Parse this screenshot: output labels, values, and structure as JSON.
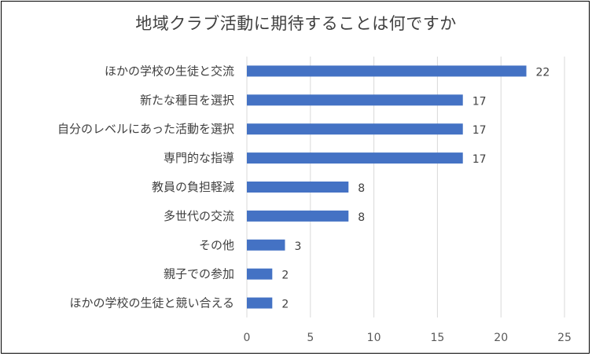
{
  "chart_data": {
    "type": "bar",
    "orientation": "horizontal",
    "title": "地域クラブ活動に期待することは何ですか",
    "categories": [
      "ほかの学校の生徒と交流",
      "新たな種目を選択",
      "自分のレベルにあった活動を選択",
      "専門的な指導",
      "教員の負担軽減",
      "多世代の交流",
      "その他",
      "親子での参加",
      "ほかの学校の生徒と競い合える"
    ],
    "values": [
      22,
      17,
      17,
      17,
      8,
      8,
      3,
      2,
      2
    ],
    "xlim": [
      0,
      25
    ],
    "xticks": [
      "0",
      "5",
      "10",
      "15",
      "20",
      "25"
    ],
    "grid": true,
    "legend": "none",
    "bar_color": "#4472C4",
    "grid_color": "#D9D9D9",
    "text_color": "#404040"
  }
}
